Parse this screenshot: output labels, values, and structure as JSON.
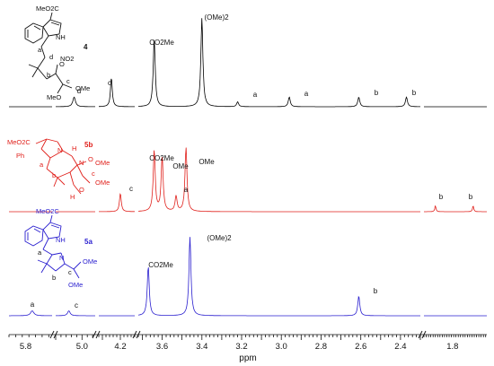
{
  "chart_data": {
    "type": "line",
    "xlabel": "ppm",
    "x_ticks": [
      "5.8",
      "5.0",
      "4.2",
      "3.6",
      "3.4",
      "3.2",
      "3.0",
      "2.8",
      "2.6",
      "2.4",
      "1.8"
    ],
    "series": [
      {
        "compound": "4",
        "color": "#000000",
        "peaks": [
          {
            "ppm": 5.03,
            "height": 0.06,
            "label": "d"
          },
          {
            "ppm": 4.25,
            "height": 0.18,
            "label": "c"
          },
          {
            "ppm": 3.64,
            "height": 0.42,
            "label": "CO2Me"
          },
          {
            "ppm": 3.4,
            "height": 0.55,
            "label": "(OMe)2"
          },
          {
            "ppm": 3.22,
            "height": 0.03,
            "label": "a"
          },
          {
            "ppm": 2.96,
            "height": 0.06,
            "label": "a"
          },
          {
            "ppm": 2.61,
            "height": 0.06,
            "label": "b"
          },
          {
            "ppm": 2.37,
            "height": 0.06,
            "label": "b"
          }
        ]
      },
      {
        "compound": "5b",
        "color": "#e0201b",
        "peaks": [
          {
            "ppm": 4.2,
            "height": 0.12,
            "label": "c"
          },
          {
            "ppm": 3.64,
            "height": 0.4,
            "label": "CO2Me"
          },
          {
            "ppm": 3.6,
            "height": 0.36,
            "label": "OMe"
          },
          {
            "ppm": 3.53,
            "height": 0.1,
            "label": "a"
          },
          {
            "ppm": 3.48,
            "height": 0.42,
            "label": "OMe"
          },
          {
            "ppm": 1.95,
            "height": 0.04,
            "label": "b"
          },
          {
            "ppm": 1.62,
            "height": 0.04,
            "label": "b"
          }
        ]
      },
      {
        "compound": "5a",
        "color": "#2a1fcf",
        "peaks": [
          {
            "ppm": 5.78,
            "height": 0.05,
            "label": "a"
          },
          {
            "ppm": 5.05,
            "height": 0.05,
            "label": "c"
          },
          {
            "ppm": 3.67,
            "height": 0.5,
            "label": "CO2Me"
          },
          {
            "ppm": 3.46,
            "height": 0.8,
            "label": "(OMe)2"
          },
          {
            "ppm": 2.61,
            "height": 0.2,
            "label": "b"
          }
        ]
      }
    ]
  },
  "labels": {
    "s4_a": "a",
    "s4_b": "b",
    "s4_c": "c",
    "s4_d": "d",
    "s4_co2me": "CO2Me",
    "s4_ome2": "(OMe)2",
    "s5b_a": "a",
    "s5b_b1": "b",
    "s5b_b2": "b",
    "s5b_c": "c",
    "s5b_co2me": "CO2Me",
    "s5b_ome1": "OMe",
    "s5b_ome2": "OMe",
    "s5a_a": "a",
    "s5a_b": "b",
    "s5a_c": "c",
    "s5a_co2me": "CO2Me",
    "s5a_ome2": "(OMe)2"
  },
  "structures": {
    "c4": {
      "label": "4",
      "texts": [
        "MeO2C",
        "NH",
        "a",
        "d",
        "NO2",
        "b",
        "O",
        "c",
        "OMe",
        "MeO"
      ]
    },
    "c5b": {
      "label": "5b",
      "texts": [
        "MeO2C",
        "N",
        "H",
        "Ph",
        "a",
        "N",
        "O",
        "c",
        "OMe",
        "OMe",
        "b",
        "O",
        "H"
      ]
    },
    "c5a": {
      "label": "5a",
      "texts": [
        "MeO2C",
        "NH",
        "a",
        "N",
        "b",
        "c",
        "OMe",
        "OMe"
      ]
    }
  }
}
